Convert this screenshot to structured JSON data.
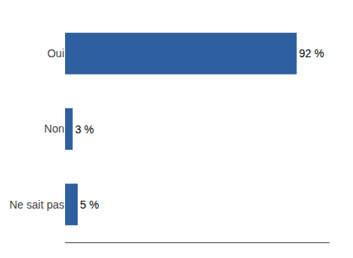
{
  "chart_data": {
    "type": "bar",
    "orientation": "horizontal",
    "categories": [
      "Oui",
      "Non",
      "Ne sait pas"
    ],
    "values": [
      92,
      3,
      5
    ],
    "value_labels": [
      "92 %",
      "3 %",
      "5 %"
    ],
    "data_labels": true,
    "color": "#2e5f9e",
    "xlim": [
      0,
      105
    ],
    "grid": false,
    "tick_labels": "y"
  }
}
